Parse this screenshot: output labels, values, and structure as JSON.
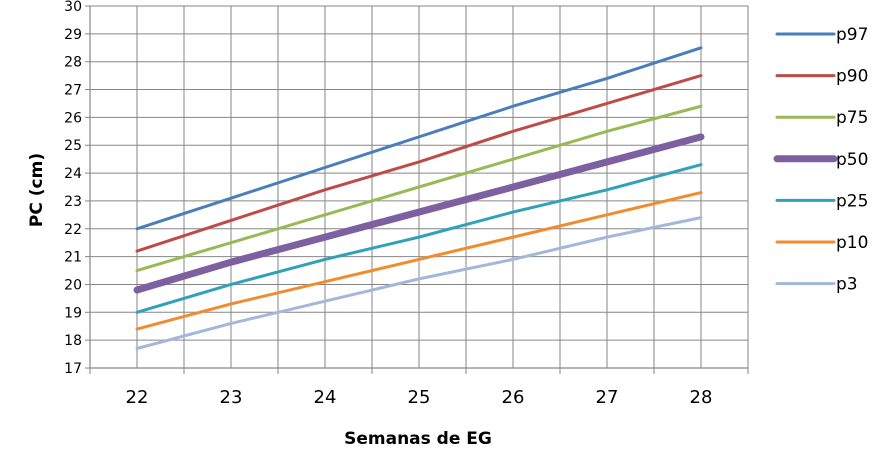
{
  "chart_data": {
    "type": "line",
    "xlabel": "Semanas de EG",
    "ylabel": "PC (cm)",
    "x": [
      22,
      23,
      24,
      25,
      26,
      27,
      28
    ],
    "xlim": [
      21.5,
      28.5
    ],
    "ylim": [
      17,
      30
    ],
    "y_ticks": [
      17,
      18,
      19,
      20,
      21,
      22,
      23,
      24,
      25,
      26,
      27,
      28,
      29,
      30
    ],
    "x_ticks": [
      22,
      23,
      24,
      25,
      26,
      27,
      28
    ],
    "grid": true,
    "legend_position": "right",
    "series": [
      {
        "name": "p97",
        "color": "#4a7ebb",
        "emphasis": false,
        "values": [
          22.0,
          23.1,
          24.2,
          25.3,
          26.4,
          27.4,
          28.5
        ]
      },
      {
        "name": "p90",
        "color": "#be4b48",
        "emphasis": false,
        "values": [
          21.2,
          22.3,
          23.4,
          24.4,
          25.5,
          26.5,
          27.5
        ]
      },
      {
        "name": "p75",
        "color": "#98b954",
        "emphasis": false,
        "values": [
          20.5,
          21.5,
          22.5,
          23.5,
          24.5,
          25.5,
          26.4
        ]
      },
      {
        "name": "p50",
        "color": "#7d60a0",
        "emphasis": true,
        "values": [
          19.8,
          20.8,
          21.7,
          22.6,
          23.5,
          24.4,
          25.3
        ]
      },
      {
        "name": "p25",
        "color": "#2fa1b8",
        "emphasis": false,
        "values": [
          19.0,
          20.0,
          20.9,
          21.7,
          22.6,
          23.4,
          24.3
        ]
      },
      {
        "name": "p10",
        "color": "#f08c2e",
        "emphasis": false,
        "values": [
          18.4,
          19.3,
          20.1,
          20.9,
          21.7,
          22.5,
          23.3
        ]
      },
      {
        "name": "p3",
        "color": "#a2b7da",
        "emphasis": false,
        "values": [
          17.7,
          18.6,
          19.4,
          20.2,
          20.9,
          21.7,
          22.4
        ]
      }
    ]
  }
}
